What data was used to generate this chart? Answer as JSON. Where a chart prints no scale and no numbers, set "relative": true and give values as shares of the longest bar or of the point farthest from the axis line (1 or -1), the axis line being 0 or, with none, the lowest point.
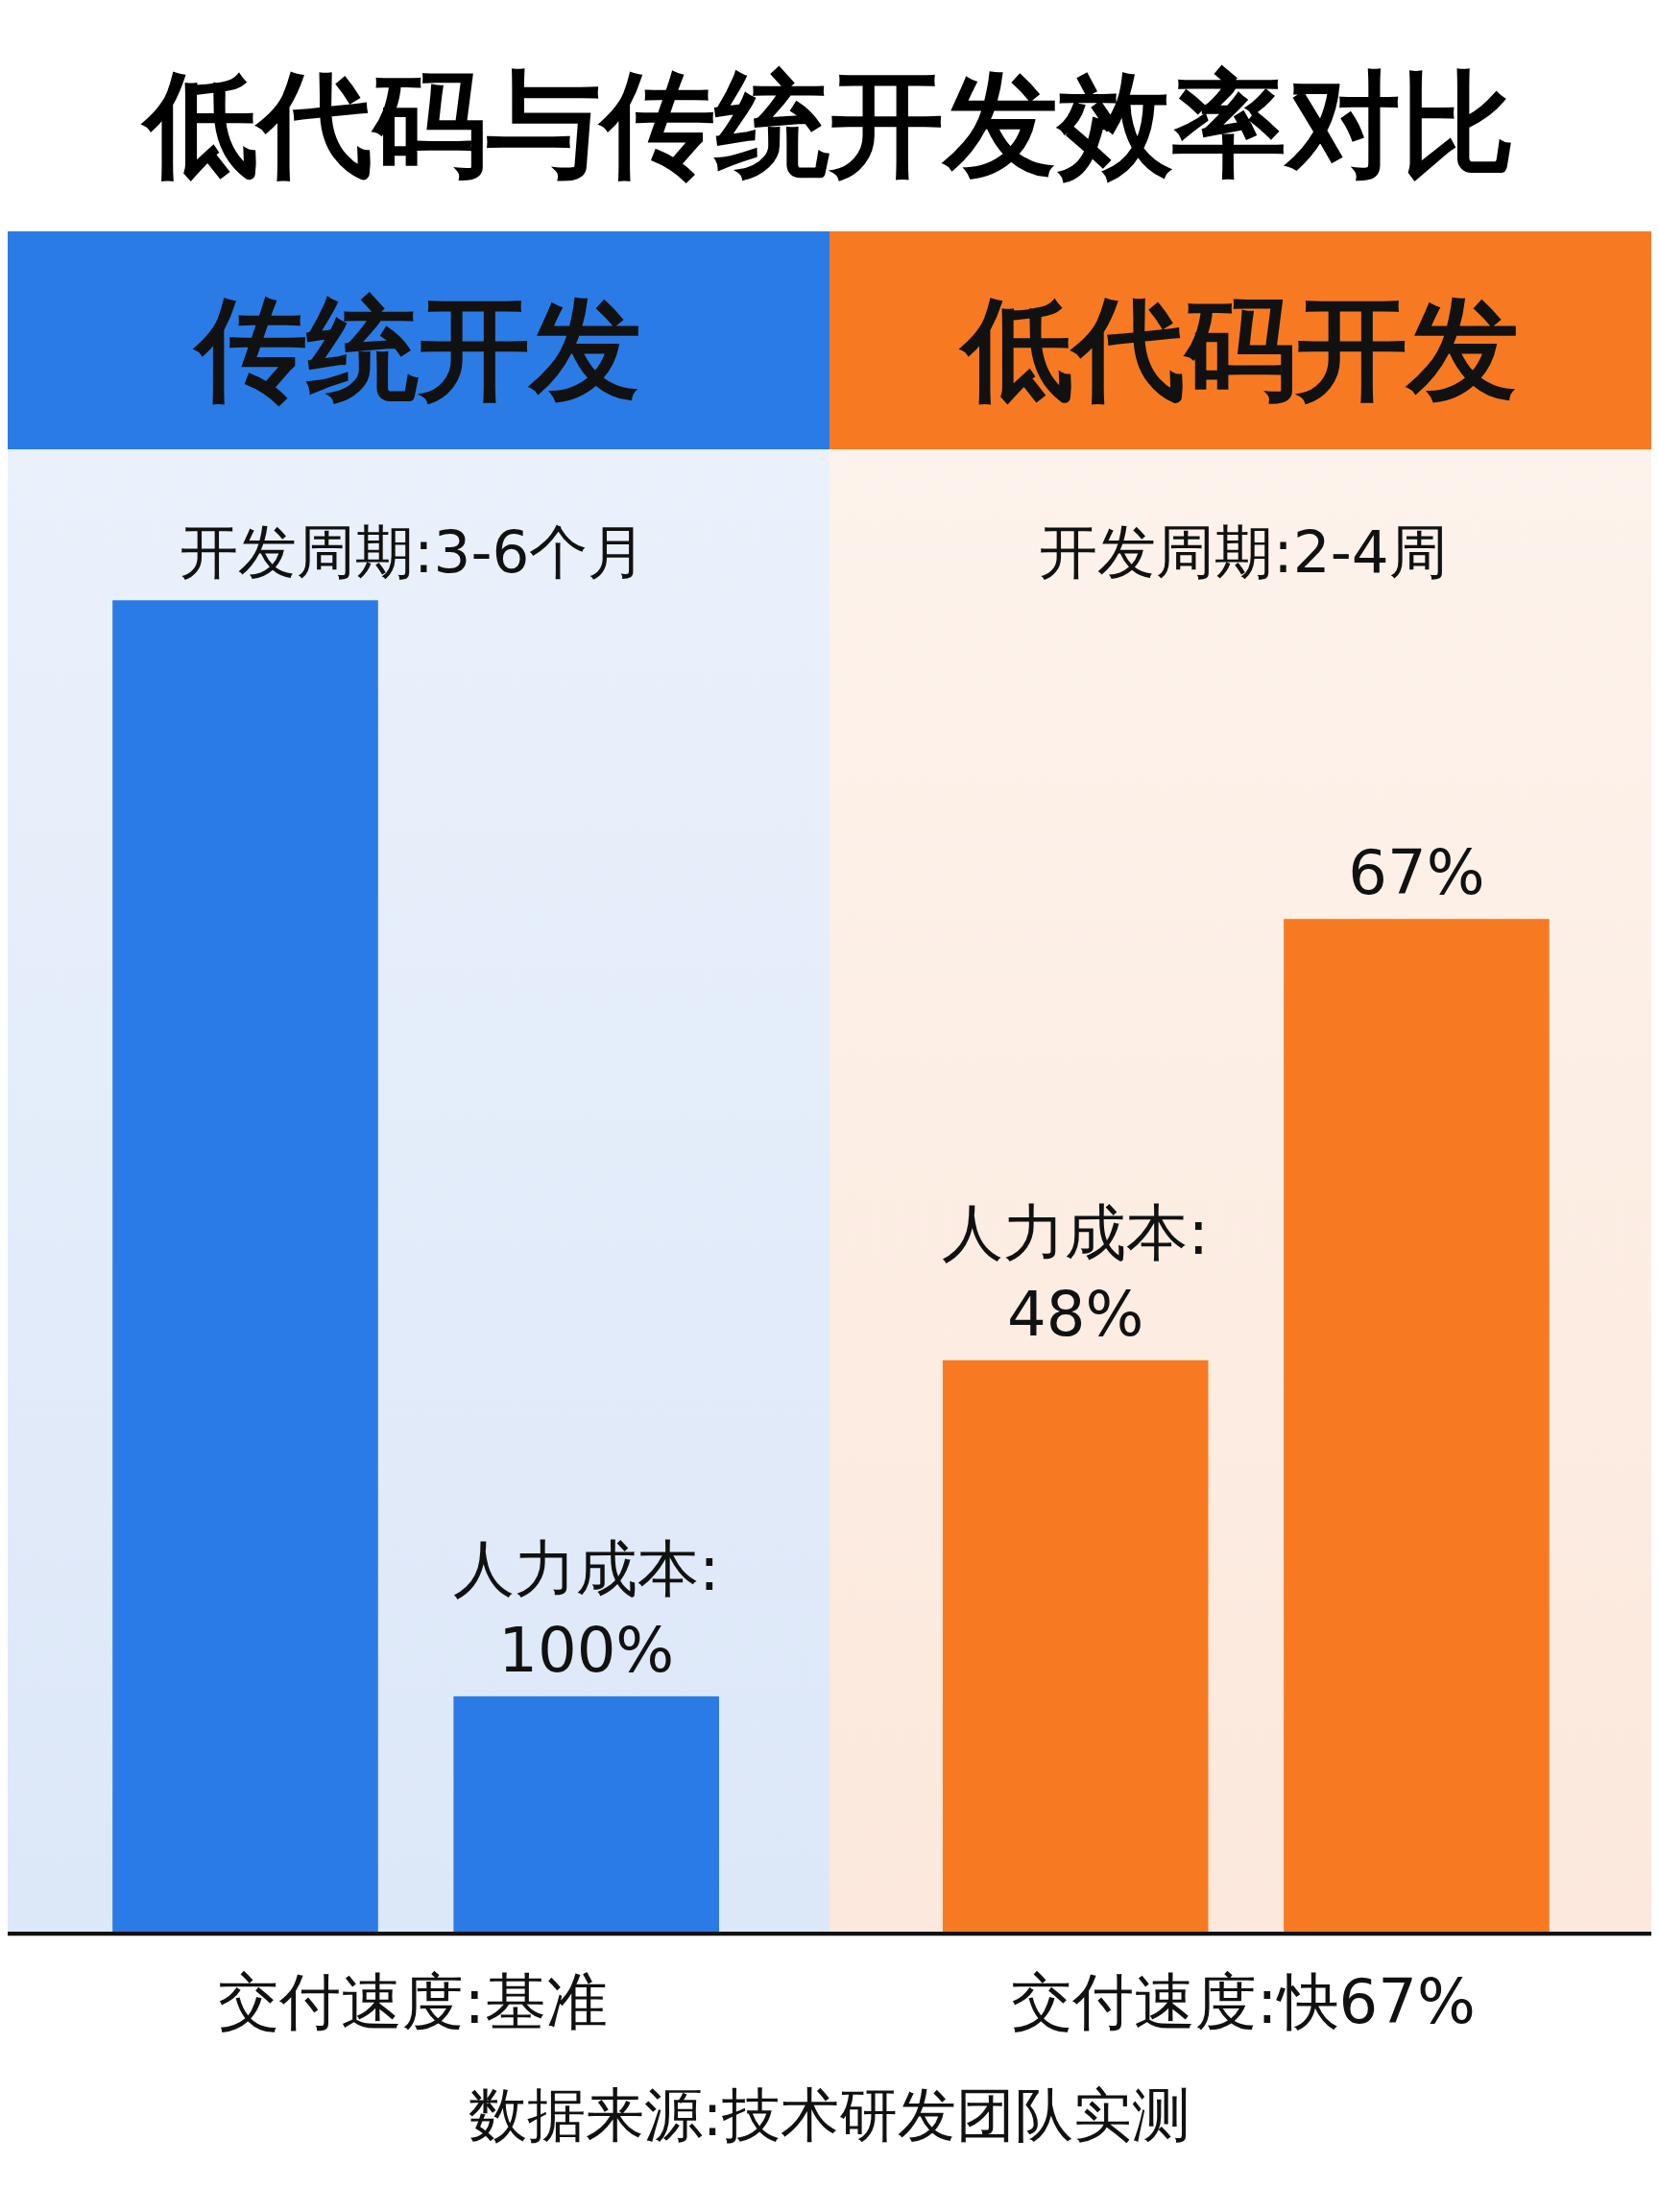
{
  "chart_data": {
    "type": "bar",
    "title": "低代码与传统开发效率对比",
    "relative": true,
    "categories": [
      null,
      null,
      null,
      null
    ],
    "values": [
      1,
      0.178,
      0.43,
      0.761
    ],
    "colors": [
      "#2b7be6",
      "#2b7be6",
      "#f77a22",
      "#f77a22"
    ],
    "annotations": [
      "传统开发",
      "低代码开发",
      "开发周期:3-6个月",
      "开发周期:2-4周",
      "交付速度:基准",
      "交付速度:快67%",
      "数据来源:技术研发团队实测",
      "人力成本:\n100%",
      "人力成本:\n48%",
      "67%"
    ]
  }
}
